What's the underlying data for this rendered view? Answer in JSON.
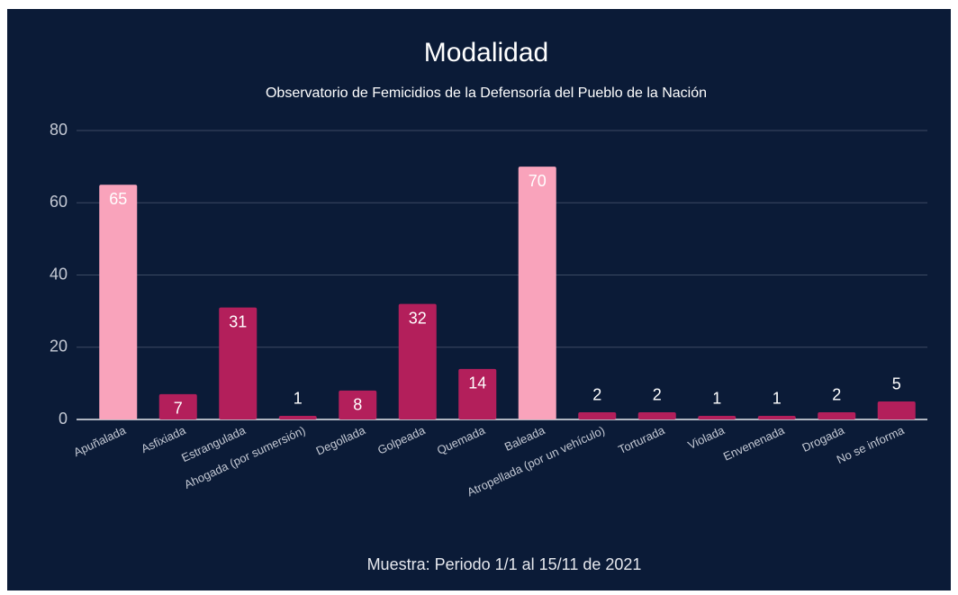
{
  "chart_data": {
    "type": "bar",
    "title": "Modalidad",
    "subtitle": "Observatorio de Femicidios de la Defensoría del Pueblo de la Nación",
    "footer": "Muestra: Periodo 1/1 al 15/11 de 2021",
    "categories": [
      "Apuñalada",
      "Asfixiada",
      "Estrangulada",
      "Ahogada (por sumersión)",
      "Degollada",
      "Golpeada",
      "Quemada",
      "Baleada",
      "Atropellada (por un vehículo)",
      "Torturada",
      "Violada",
      "Envenenada",
      "Drogada",
      "No se informa"
    ],
    "values": [
      65,
      7,
      31,
      1,
      8,
      32,
      14,
      70,
      2,
      2,
      1,
      1,
      2,
      5
    ],
    "colors": [
      "#f9a3bb",
      "#b31f5b",
      "#b31f5b",
      "#b31f5b",
      "#b31f5b",
      "#b31f5b",
      "#b31f5b",
      "#f9a3bb",
      "#b31f5b",
      "#b31f5b",
      "#b31f5b",
      "#b31f5b",
      "#b31f5b",
      "#b31f5b"
    ],
    "ylim": [
      0,
      80
    ],
    "yticks": [
      0,
      20,
      40,
      60,
      80
    ],
    "grid": true
  }
}
